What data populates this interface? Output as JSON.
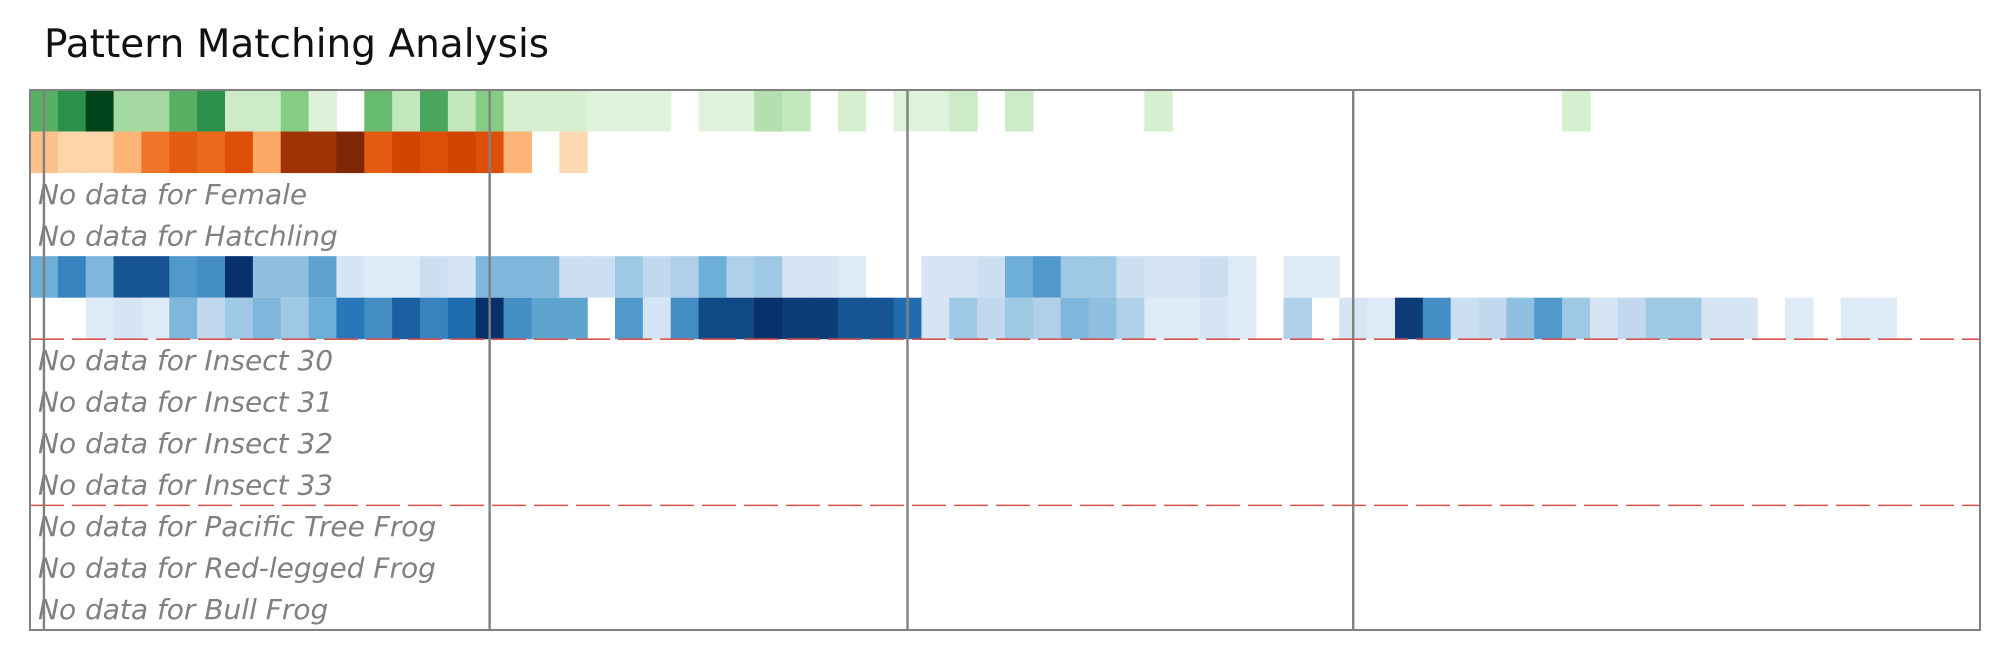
{
  "title": "Pattern Matching Analysis",
  "chart_data": {
    "type": "heatmap",
    "title": "Pattern Matching Analysis",
    "xlabel": "",
    "ylabel": "",
    "n_columns": 70,
    "rows": [
      {
        "has_data": true,
        "cmap": "Greens",
        "values": [
          0.55,
          0.7,
          1.0,
          0.3,
          0.3,
          0.55,
          0.7,
          0.15,
          0.15,
          0.4,
          0.06,
          0,
          0.5,
          0.2,
          0.6,
          0.2,
          0.4,
          0.1,
          0.1,
          0.1,
          0.05,
          0.05,
          0.05,
          0,
          0.05,
          0.05,
          0.25,
          0.2,
          0,
          0.1,
          0,
          0.05,
          0.05,
          0.15,
          0,
          0.15,
          0,
          0,
          0,
          0,
          0.1,
          0,
          0,
          0,
          0,
          0,
          0,
          0,
          0,
          0,
          0,
          0,
          0,
          0,
          0,
          0.1,
          0,
          0,
          0,
          0,
          0,
          0,
          0,
          0,
          0,
          0,
          0,
          0,
          0,
          0
        ]
      },
      {
        "has_data": true,
        "cmap": "Oranges",
        "values": [
          0.25,
          0.15,
          0.15,
          0.3,
          0.55,
          0.65,
          0.6,
          0.7,
          0.35,
          0.9,
          0.9,
          1.0,
          0.65,
          0.75,
          0.7,
          0.75,
          0.7,
          0.3,
          0,
          0.12,
          0,
          0,
          0,
          0,
          0,
          0,
          0,
          0,
          0,
          0,
          0,
          0,
          0,
          0,
          0,
          0,
          0,
          0,
          0,
          0,
          0,
          0,
          0,
          0,
          0,
          0,
          0,
          0,
          0,
          0,
          0,
          0,
          0,
          0,
          0,
          0,
          0,
          0,
          0,
          0,
          0,
          0,
          0,
          0,
          0,
          0,
          0,
          0,
          0,
          0
        ]
      },
      {
        "has_data": false,
        "label": "No data for Female"
      },
      {
        "has_data": false,
        "label": "No data for Hatchling"
      },
      {
        "has_data": true,
        "cmap": "Blues",
        "values": [
          0.45,
          0.65,
          0.4,
          0.85,
          0.85,
          0.55,
          0.6,
          1.0,
          0.35,
          0.35,
          0.5,
          0.1,
          0.05,
          0.05,
          0.15,
          0.1,
          0.4,
          0.4,
          0.4,
          0.15,
          0.15,
          0.3,
          0.2,
          0.25,
          0.45,
          0.25,
          0.3,
          0.1,
          0.1,
          0.05,
          0,
          0,
          0.1,
          0.1,
          0.15,
          0.45,
          0.55,
          0.3,
          0.3,
          0.15,
          0.1,
          0.1,
          0.15,
          0.05,
          0,
          0.05,
          0.05,
          0,
          0,
          0,
          0,
          0,
          0,
          0,
          0,
          0,
          0,
          0,
          0,
          0,
          0,
          0,
          0,
          0,
          0,
          0,
          0,
          0,
          0,
          0
        ]
      },
      {
        "has_data": true,
        "cmap": "Blues",
        "values": [
          0,
          0,
          0.05,
          0.1,
          0.05,
          0.4,
          0.2,
          0.3,
          0.4,
          0.3,
          0.45,
          0.7,
          0.6,
          0.8,
          0.65,
          0.75,
          1.0,
          0.6,
          0.5,
          0.5,
          0,
          0.55,
          0.1,
          0.6,
          0.9,
          0.9,
          1.0,
          0.95,
          0.95,
          0.85,
          0.85,
          0.75,
          0.1,
          0.3,
          0.2,
          0.3,
          0.25,
          0.4,
          0.35,
          0.25,
          0.05,
          0.05,
          0.1,
          0.05,
          0,
          0.25,
          0,
          0.1,
          0.05,
          0.95,
          0.6,
          0.15,
          0.2,
          0.35,
          0.55,
          0.3,
          0.1,
          0.2,
          0.3,
          0.3,
          0.1,
          0.1,
          0,
          0.05,
          0,
          0.05,
          0.05,
          0,
          0,
          0
        ]
      },
      {
        "has_data": false,
        "label": "No data for Insect 30"
      },
      {
        "has_data": false,
        "label": "No data for Insect 31"
      },
      {
        "has_data": false,
        "label": "No data for Insect 32"
      },
      {
        "has_data": false,
        "label": "No data for Insect 33"
      },
      {
        "has_data": false,
        "label": "No data for Pacific Tree Frog"
      },
      {
        "has_data": false,
        "label": "No data for Red-legged Frog"
      },
      {
        "has_data": false,
        "label": "No data for Bull Frog"
      }
    ],
    "group_boundaries_after_row": [
      5,
      9
    ],
    "column_boundaries": [
      0.5,
      16.5,
      31.5,
      47.5
    ],
    "colors": {
      "boundary_line": "#d9534f",
      "column_line": "#808080",
      "frame": "#808080",
      "nodata_text": "#808080"
    }
  }
}
